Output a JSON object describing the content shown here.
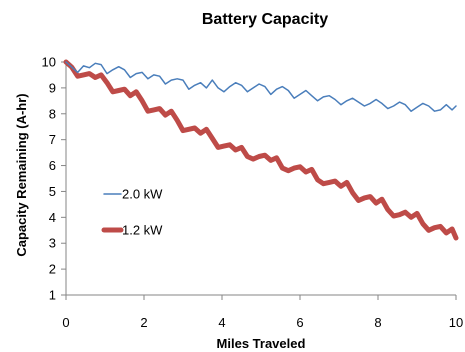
{
  "chart_data": {
    "type": "line",
    "title": "Battery Capacity",
    "xlabel": "Miles Traveled",
    "ylabel": "Capacity Remaining (A-hr)",
    "xlim": [
      0,
      10
    ],
    "ylim": [
      1,
      10
    ],
    "xticks": [
      0,
      2,
      4,
      6,
      8,
      10
    ],
    "yticks": [
      1,
      2,
      3,
      4,
      5,
      6,
      7,
      8,
      9,
      10
    ],
    "grid": false,
    "legend_position": "left",
    "series": [
      {
        "name": "2.0 kW",
        "color": "#4a7ebb",
        "x": [
          0,
          0.3,
          0.45,
          0.6,
          0.75,
          0.9,
          1.05,
          1.2,
          1.35,
          1.5,
          1.65,
          1.8,
          1.95,
          2.1,
          2.25,
          2.4,
          2.55,
          2.7,
          2.85,
          3.0,
          3.15,
          3.3,
          3.45,
          3.6,
          3.75,
          3.9,
          4.05,
          4.2,
          4.35,
          4.5,
          4.65,
          4.8,
          4.95,
          5.1,
          5.25,
          5.4,
          5.55,
          5.7,
          5.85,
          6.0,
          6.15,
          6.3,
          6.45,
          6.6,
          6.75,
          6.9,
          7.05,
          7.2,
          7.35,
          7.5,
          7.65,
          7.8,
          7.95,
          8.1,
          8.25,
          8.4,
          8.55,
          8.7,
          8.85,
          9.0,
          9.15,
          9.3,
          9.45,
          9.6,
          9.75,
          9.9,
          10.0
        ],
        "values": [
          10.0,
          9.6,
          9.85,
          9.78,
          9.95,
          9.9,
          9.55,
          9.7,
          9.82,
          9.7,
          9.4,
          9.55,
          9.6,
          9.35,
          9.5,
          9.45,
          9.15,
          9.3,
          9.35,
          9.3,
          8.95,
          9.1,
          9.2,
          9.0,
          9.3,
          9.0,
          8.85,
          9.05,
          9.2,
          9.1,
          8.85,
          9.0,
          9.15,
          9.05,
          8.75,
          8.95,
          9.05,
          8.9,
          8.6,
          8.75,
          8.9,
          8.7,
          8.5,
          8.65,
          8.7,
          8.55,
          8.35,
          8.5,
          8.6,
          8.45,
          8.3,
          8.4,
          8.55,
          8.4,
          8.2,
          8.3,
          8.45,
          8.35,
          8.1,
          8.25,
          8.4,
          8.3,
          8.1,
          8.15,
          8.35,
          8.15,
          8.3
        ]
      },
      {
        "name": "1.2 kW",
        "color": "#be4b48",
        "x": [
          0,
          0.15,
          0.3,
          0.45,
          0.6,
          0.75,
          0.9,
          1.05,
          1.2,
          1.35,
          1.5,
          1.65,
          1.8,
          1.95,
          2.1,
          2.25,
          2.4,
          2.55,
          2.7,
          2.85,
          3.0,
          3.15,
          3.3,
          3.45,
          3.6,
          3.75,
          3.9,
          4.05,
          4.2,
          4.35,
          4.5,
          4.65,
          4.8,
          4.95,
          5.1,
          5.25,
          5.4,
          5.55,
          5.7,
          5.85,
          6.0,
          6.15,
          6.3,
          6.45,
          6.6,
          6.75,
          6.9,
          7.05,
          7.2,
          7.35,
          7.5,
          7.65,
          7.8,
          7.95,
          8.1,
          8.25,
          8.4,
          8.55,
          8.7,
          8.85,
          9.0,
          9.15,
          9.3,
          9.45,
          9.6,
          9.75,
          9.9,
          10.0
        ],
        "values": [
          10.0,
          9.8,
          9.45,
          9.5,
          9.55,
          9.4,
          9.5,
          9.2,
          8.85,
          8.9,
          8.95,
          8.7,
          8.85,
          8.5,
          8.1,
          8.15,
          8.2,
          7.95,
          8.1,
          7.75,
          7.35,
          7.4,
          7.45,
          7.25,
          7.4,
          7.05,
          6.7,
          6.75,
          6.8,
          6.6,
          6.7,
          6.35,
          6.25,
          6.35,
          6.4,
          6.2,
          6.3,
          5.9,
          5.8,
          5.9,
          5.95,
          5.75,
          5.85,
          5.45,
          5.3,
          5.35,
          5.4,
          5.2,
          5.35,
          4.95,
          4.65,
          4.75,
          4.8,
          4.55,
          4.7,
          4.3,
          4.05,
          4.1,
          4.2,
          4.0,
          4.15,
          3.75,
          3.5,
          3.6,
          3.65,
          3.4,
          3.55,
          3.2
        ]
      }
    ]
  }
}
